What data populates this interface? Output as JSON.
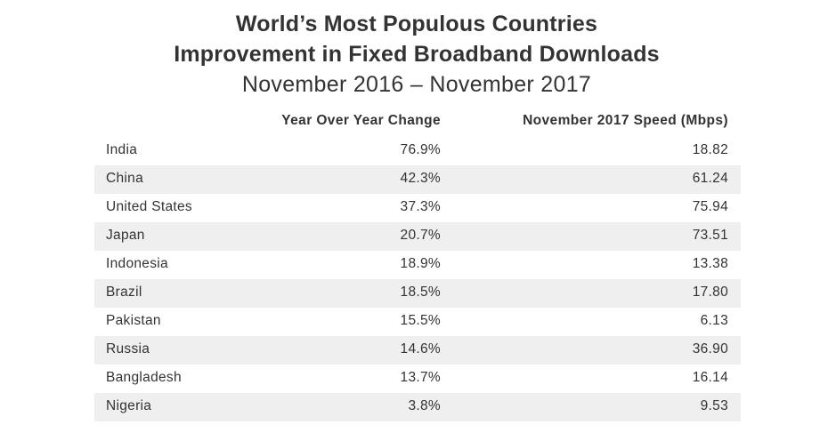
{
  "title_lines": [
    "World’s Most Populous Countries",
    "Improvement in Fixed Broadband Downloads"
  ],
  "subtitle": "November 2016 – November 2017",
  "chart_data": {
    "type": "table",
    "title": "World’s Most Populous Countries Improvement in Fixed Broadband Downloads",
    "subtitle": "November 2016 – November 2017",
    "columns": [
      "",
      "Year Over Year Change",
      "November 2017 Speed (Mbps)"
    ],
    "rows": [
      {
        "country": "India",
        "yoy": "76.9%",
        "speed": "18.82"
      },
      {
        "country": "China",
        "yoy": "42.3%",
        "speed": "61.24"
      },
      {
        "country": "United States",
        "yoy": "37.3%",
        "speed": "75.94"
      },
      {
        "country": "Japan",
        "yoy": "20.7%",
        "speed": "73.51"
      },
      {
        "country": "Indonesia",
        "yoy": "18.9%",
        "speed": "13.38"
      },
      {
        "country": "Brazil",
        "yoy": "18.5%",
        "speed": "17.80"
      },
      {
        "country": "Pakistan",
        "yoy": "15.5%",
        "speed": "6.13"
      },
      {
        "country": "Russia",
        "yoy": "14.6%",
        "speed": "36.90"
      },
      {
        "country": "Bangladesh",
        "yoy": "13.7%",
        "speed": "16.14"
      },
      {
        "country": "Nigeria",
        "yoy": "3.8%",
        "speed": "9.53"
      }
    ],
    "row_shading": "alternating",
    "colors": {
      "text": "#333333",
      "shaded_row": "#efefef",
      "background": "#ffffff"
    }
  }
}
